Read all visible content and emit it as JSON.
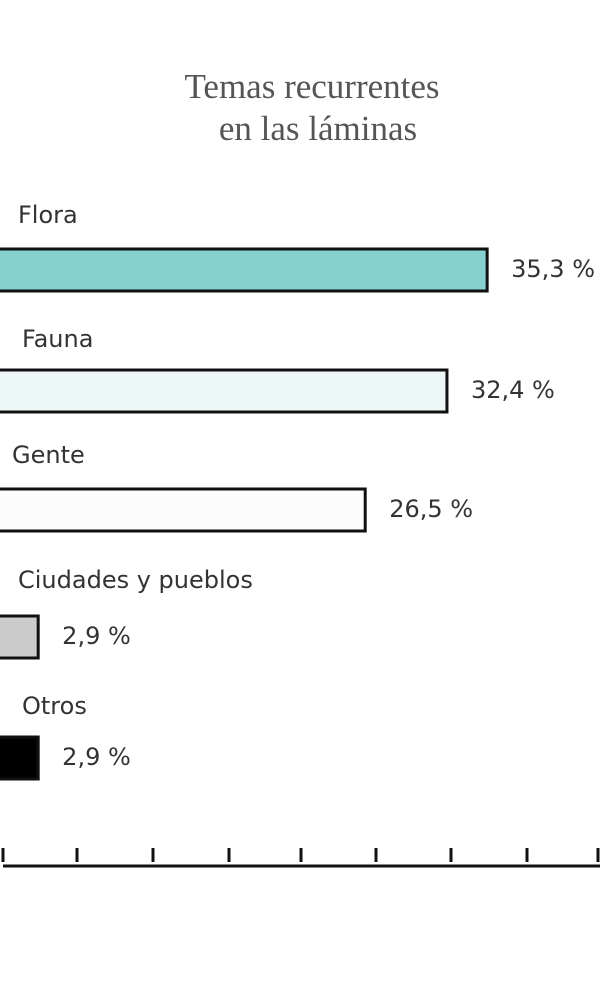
{
  "chart_data": {
    "type": "barh",
    "title": [
      "Temas recurrentes",
      "en las láminas"
    ],
    "categories": [
      "Flora",
      "Fauna",
      "Gente",
      "Ciudades y pueblos",
      "Otros"
    ],
    "values": [
      35.3,
      32.4,
      26.5,
      2.9,
      2.9
    ],
    "value_labels": [
      "35,3 %",
      "32,4 %",
      "26,5 %",
      "2,9 %",
      "2,9 %"
    ],
    "colors": [
      "#86d0cf",
      "#eef7f8",
      "#fcfcfc",
      "#cccccc",
      "#000000"
    ],
    "xlim": [
      0,
      43.3
    ]
  }
}
